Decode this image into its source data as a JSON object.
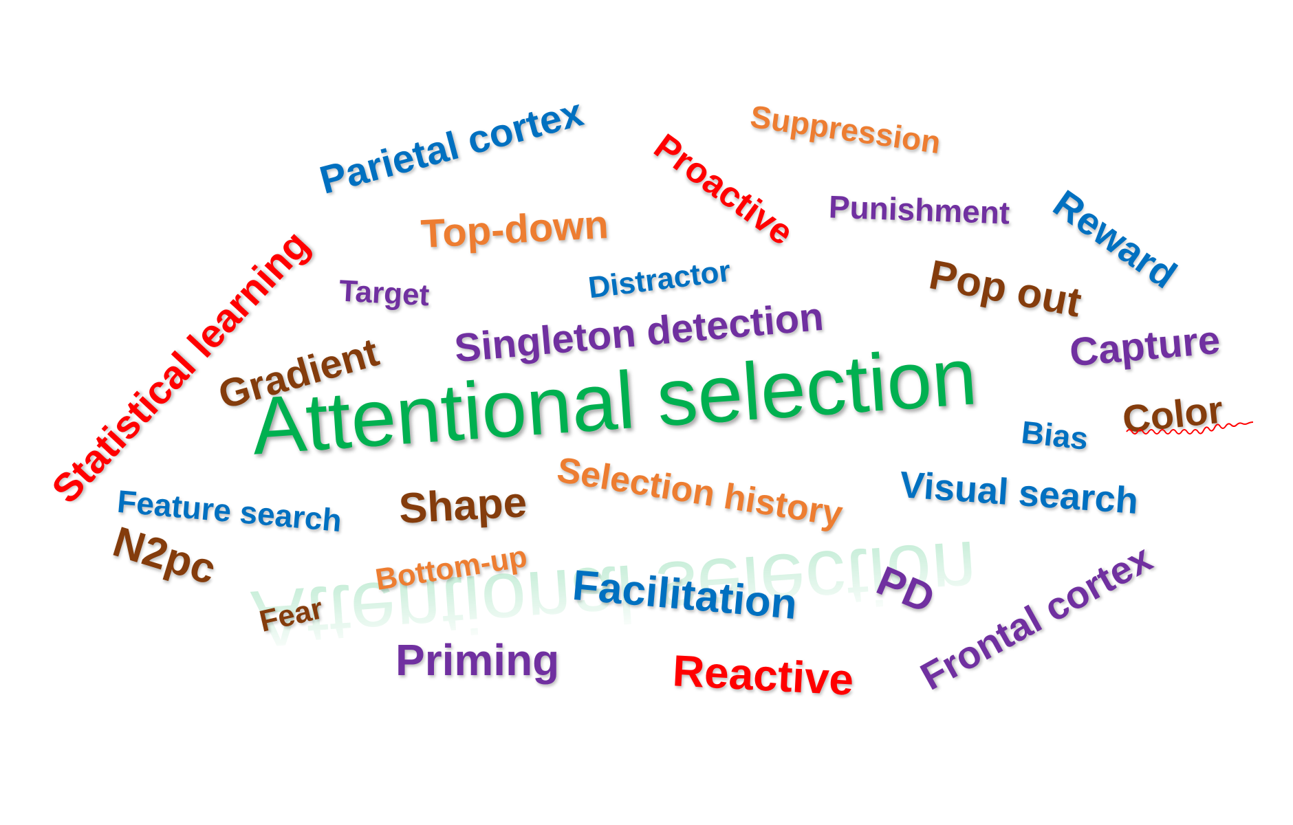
{
  "colors": {
    "red": "#ff0000",
    "orange": "#ed7d31",
    "blue": "#0070c0",
    "purple": "#7030a0",
    "brown": "#843c0c",
    "green": "#00b050"
  },
  "main_term": "Attentional selection",
  "words": [
    {
      "text": "Parietal cortex",
      "color": "blue"
    },
    {
      "text": "Proactive",
      "color": "red"
    },
    {
      "text": "Suppression",
      "color": "orange"
    },
    {
      "text": "Punishment",
      "color": "purple"
    },
    {
      "text": "Reward",
      "color": "blue"
    },
    {
      "text": "Top-down",
      "color": "orange"
    },
    {
      "text": "Statistical learning",
      "color": "red"
    },
    {
      "text": "Target",
      "color": "purple"
    },
    {
      "text": "Distractor",
      "color": "blue"
    },
    {
      "text": "Pop out",
      "color": "brown"
    },
    {
      "text": "Singleton detection",
      "color": "purple"
    },
    {
      "text": "Gradient",
      "color": "brown"
    },
    {
      "text": "Capture",
      "color": "purple"
    },
    {
      "text": "Color",
      "color": "brown"
    },
    {
      "text": "Bias",
      "color": "blue"
    },
    {
      "text": "Feature search",
      "color": "blue"
    },
    {
      "text": "Shape",
      "color": "brown"
    },
    {
      "text": "Selection history",
      "color": "orange"
    },
    {
      "text": "Visual search",
      "color": "blue"
    },
    {
      "text": "N2pc",
      "color": "brown"
    },
    {
      "text": "Bottom-up",
      "color": "orange"
    },
    {
      "text": "Facilitation",
      "color": "blue"
    },
    {
      "text": "PD",
      "color": "purple"
    },
    {
      "text": "Fear",
      "color": "brown"
    },
    {
      "text": "Frontal cortex",
      "color": "purple"
    },
    {
      "text": "Priming",
      "color": "purple"
    },
    {
      "text": "Reactive",
      "color": "red"
    }
  ]
}
